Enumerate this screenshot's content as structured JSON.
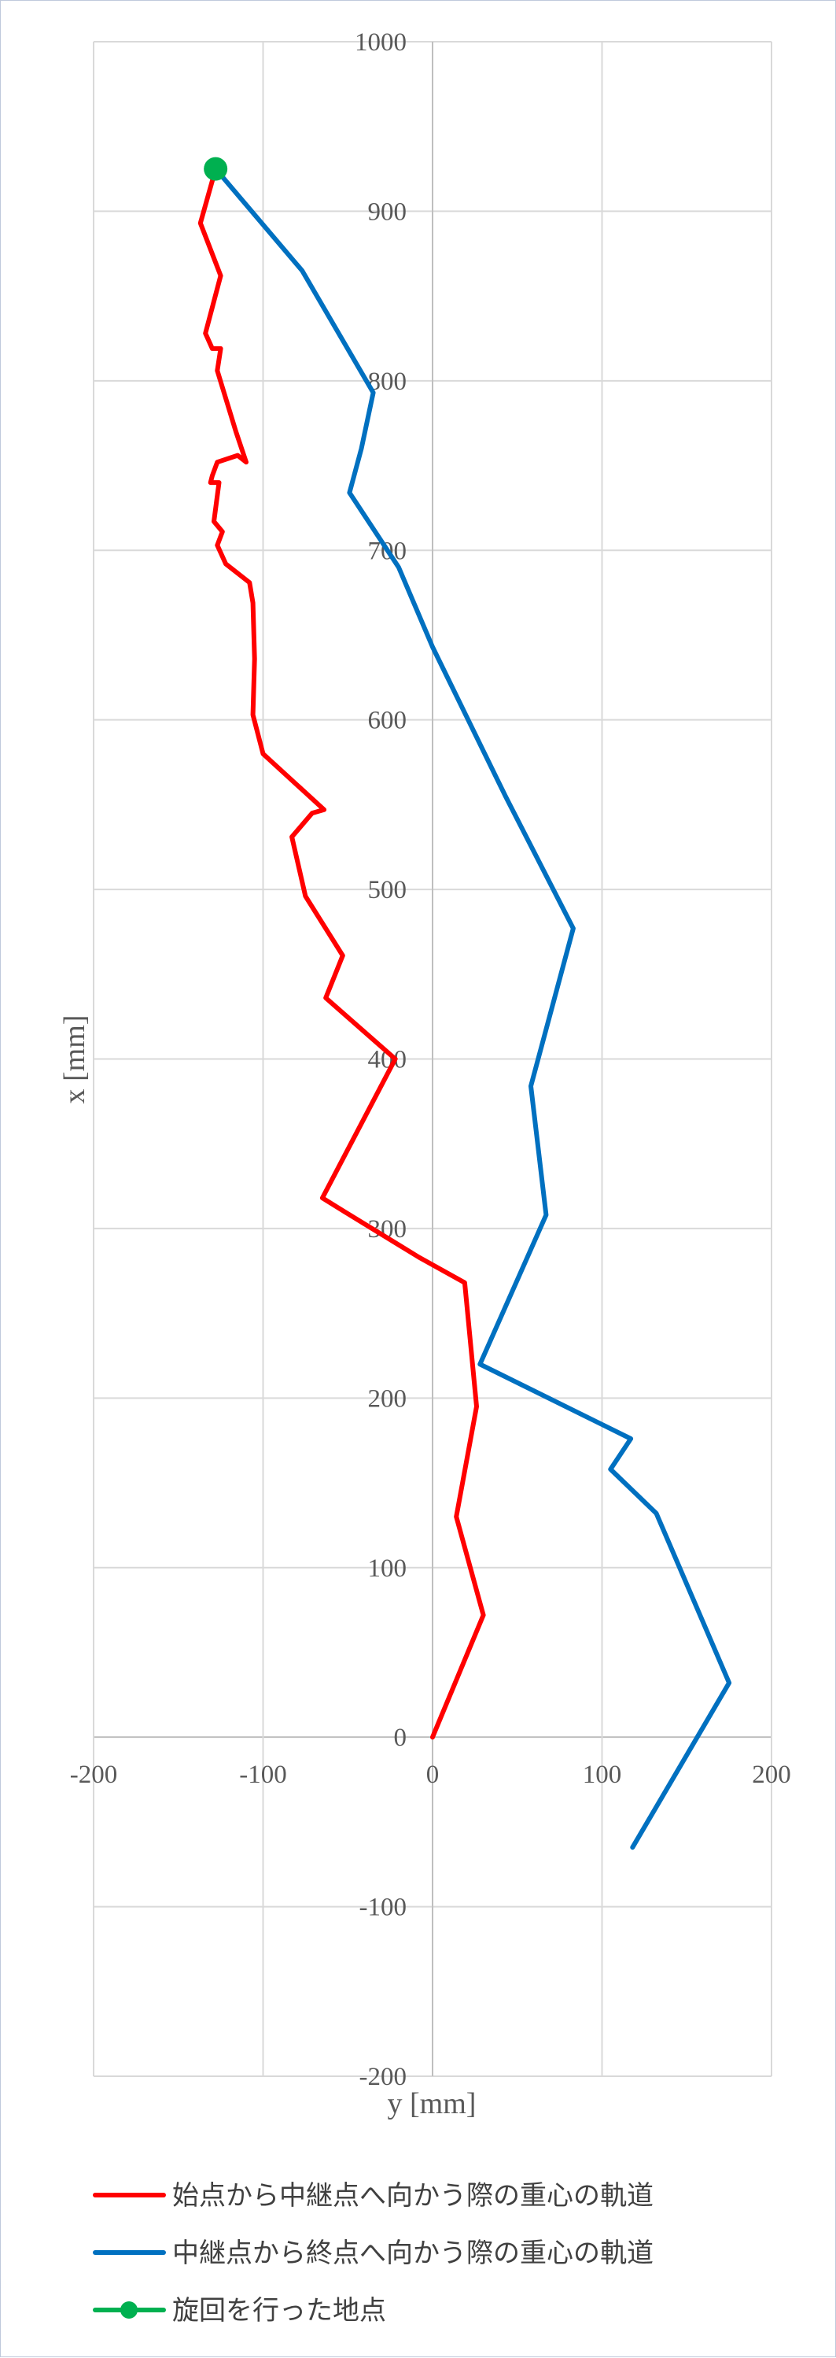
{
  "chart_data": {
    "type": "line",
    "xlabel": "y [mm]",
    "ylabel": "x [mm]",
    "xlim": [
      -200,
      200
    ],
    "ylim": [
      -200,
      1000
    ],
    "x_ticks": [
      -200,
      -100,
      0,
      100,
      200
    ],
    "y_ticks": [
      -200,
      -100,
      0,
      100,
      200,
      300,
      400,
      500,
      600,
      700,
      800,
      900,
      1000
    ],
    "x_tick_labels": [
      "-200",
      "-100",
      "0",
      "100",
      "200"
    ],
    "y_tick_labels": [
      "-200",
      "-100",
      "0",
      "100",
      "200",
      "300",
      "400",
      "500",
      "600",
      "700",
      "800",
      "900",
      "1000"
    ],
    "grid": true,
    "legend_position": "bottom",
    "series": [
      {
        "name": "始点から中継点へ向かう際の重心の軌道",
        "color": "#ff0000",
        "marker": "none",
        "points": [
          [
            0,
            0
          ],
          [
            30,
            72
          ],
          [
            14,
            130
          ],
          [
            26,
            195
          ],
          [
            19,
            268
          ],
          [
            -8,
            283
          ],
          [
            -52,
            310
          ],
          [
            -65,
            318
          ],
          [
            -22,
            400
          ],
          [
            -63,
            436
          ],
          [
            -53,
            461
          ],
          [
            -75,
            496
          ],
          [
            -83,
            531
          ],
          [
            -71,
            545
          ],
          [
            -64,
            547
          ],
          [
            -100,
            580
          ],
          [
            -106,
            603
          ],
          [
            -105,
            636
          ],
          [
            -106,
            669
          ],
          [
            -108,
            681
          ],
          [
            -122,
            692
          ],
          [
            -127,
            703
          ],
          [
            -124,
            711
          ],
          [
            -129,
            717
          ],
          [
            -126,
            740
          ],
          [
            -131,
            740
          ],
          [
            -130,
            744
          ],
          [
            -127,
            752
          ],
          [
            -115,
            756
          ],
          [
            -110,
            752
          ],
          [
            -116,
            770
          ],
          [
            -127,
            806
          ],
          [
            -125,
            819
          ],
          [
            -130,
            819
          ],
          [
            -134,
            828
          ],
          [
            -125,
            862
          ],
          [
            -137,
            893
          ],
          [
            -128,
            925
          ]
        ]
      },
      {
        "name": "中継点から終点へ向かう際の重心の軌道",
        "color": "#0070c0",
        "marker": "none",
        "points": [
          [
            -128,
            925
          ],
          [
            -77,
            865
          ],
          [
            -35,
            793
          ],
          [
            -42,
            760
          ],
          [
            -49,
            734
          ],
          [
            -20,
            690
          ],
          [
            0,
            643
          ],
          [
            43,
            555
          ],
          [
            83,
            477
          ],
          [
            58,
            384
          ],
          [
            67,
            308
          ],
          [
            28,
            220
          ],
          [
            117,
            176
          ],
          [
            105,
            158
          ],
          [
            132,
            132
          ],
          [
            175,
            32
          ],
          [
            118,
            -65
          ]
        ]
      },
      {
        "name": "旋回を行った地点",
        "color": "#00b050",
        "marker": "circle",
        "points": [
          [
            -128,
            925
          ]
        ]
      }
    ]
  }
}
